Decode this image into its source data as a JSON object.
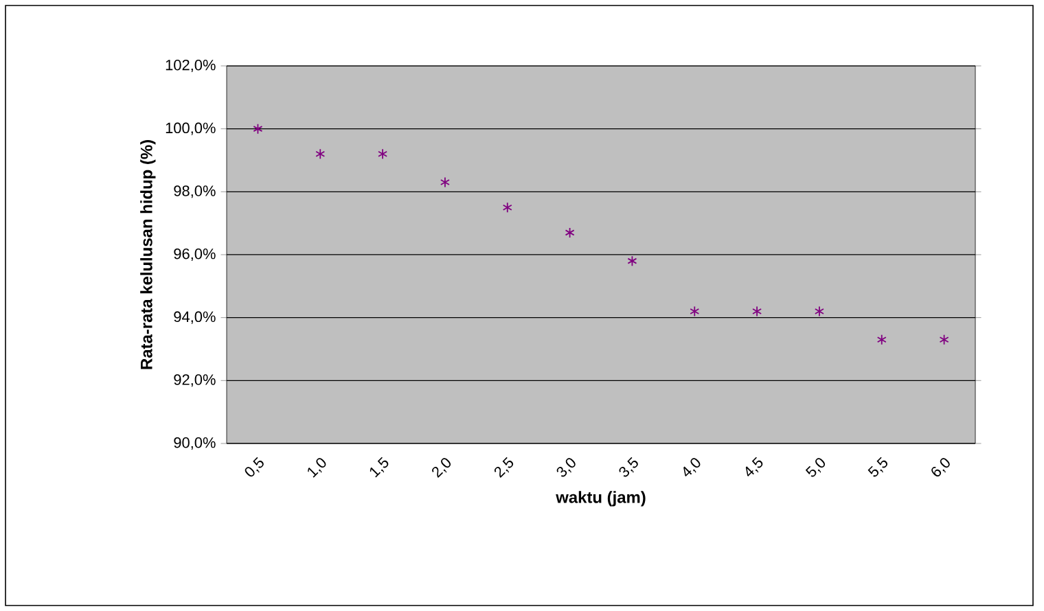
{
  "chart_data": {
    "type": "scatter",
    "xlabel": "waktu (jam)",
    "ylabel": "Rata-rata kelulusan hidup (%)",
    "categories": [
      "0,5",
      "1,0",
      "1,5",
      "2,0",
      "2,5",
      "3,0",
      "3,5",
      "4,0",
      "4,5",
      "5,0",
      "5,5",
      "6,0"
    ],
    "series": [
      {
        "color": "#800080",
        "values": [
          100.0,
          99.2,
          99.2,
          98.3,
          97.5,
          96.7,
          95.8,
          94.2,
          94.2,
          94.2,
          93.3,
          93.3
        ]
      }
    ],
    "ylim": [
      90,
      102
    ],
    "yticks": [
      {
        "value": 90,
        "label": "90,0%"
      },
      {
        "value": 92,
        "label": "92,0%"
      },
      {
        "value": 94,
        "label": "94,0%"
      },
      {
        "value": 96,
        "label": "96,0%"
      },
      {
        "value": 98,
        "label": "98,0%"
      },
      {
        "value": 100,
        "label": "100,0%"
      },
      {
        "value": 102,
        "label": "102,0%"
      }
    ],
    "grid": "y",
    "marker": "cross"
  }
}
